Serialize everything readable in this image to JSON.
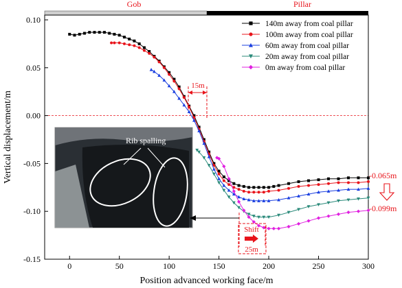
{
  "chart_data": {
    "type": "line",
    "xlabel": "Position advanced working face/m",
    "ylabel": "Vertical displacement/m",
    "xlim": [
      -25,
      300
    ],
    "ylim": [
      -0.15,
      0.105
    ],
    "xticks": [
      0,
      50,
      100,
      150,
      200,
      250,
      300
    ],
    "yticks": [
      0.1,
      0.05,
      0.0,
      -0.05,
      -0.1,
      -0.15
    ],
    "ytick_labels": [
      "0.10",
      "0.05",
      "0.00",
      "-0.05",
      "-0.10",
      "-0.15"
    ],
    "grid": false,
    "legend_position": "top-right",
    "zero_line": true,
    "zones": {
      "gob": {
        "label": "Gob",
        "from": -25,
        "to": 142
      },
      "pillar": {
        "label": "Pillar",
        "from": 142,
        "to": 300
      }
    },
    "series": [
      {
        "name": "140m away from coal pillar",
        "color": "#000000",
        "marker": "square",
        "points": [
          [
            0,
            0.085
          ],
          [
            5,
            0.084
          ],
          [
            10,
            0.085
          ],
          [
            15,
            0.086
          ],
          [
            20,
            0.087
          ],
          [
            25,
            0.087
          ],
          [
            30,
            0.087
          ],
          [
            35,
            0.087
          ],
          [
            40,
            0.086
          ],
          [
            45,
            0.085
          ],
          [
            50,
            0.084
          ],
          [
            55,
            0.082
          ],
          [
            60,
            0.08
          ],
          [
            65,
            0.078
          ],
          [
            70,
            0.075
          ],
          [
            75,
            0.071
          ],
          [
            80,
            0.067
          ],
          [
            85,
            0.062
          ],
          [
            90,
            0.057
          ],
          [
            95,
            0.051
          ],
          [
            100,
            0.045
          ],
          [
            105,
            0.038
          ],
          [
            110,
            0.03
          ],
          [
            115,
            0.02
          ],
          [
            120,
            0.01
          ],
          [
            125,
            0.0
          ],
          [
            130,
            -0.012
          ],
          [
            135,
            -0.025
          ],
          [
            140,
            -0.038
          ],
          [
            145,
            -0.05
          ],
          [
            150,
            -0.058
          ],
          [
            155,
            -0.064
          ],
          [
            160,
            -0.068
          ],
          [
            165,
            -0.071
          ],
          [
            170,
            -0.073
          ],
          [
            175,
            -0.074
          ],
          [
            180,
            -0.075
          ],
          [
            185,
            -0.075
          ],
          [
            190,
            -0.075
          ],
          [
            195,
            -0.075
          ],
          [
            200,
            -0.075
          ],
          [
            205,
            -0.074
          ],
          [
            210,
            -0.073
          ],
          [
            220,
            -0.071
          ],
          [
            230,
            -0.069
          ],
          [
            240,
            -0.068
          ],
          [
            250,
            -0.067
          ],
          [
            260,
            -0.066
          ],
          [
            270,
            -0.066
          ],
          [
            280,
            -0.065
          ],
          [
            290,
            -0.065
          ],
          [
            300,
            -0.065
          ]
        ]
      },
      {
        "name": "100m away from coal pillar",
        "color": "#e8141b",
        "marker": "circle",
        "points": [
          [
            42,
            0.076
          ],
          [
            45,
            0.076
          ],
          [
            50,
            0.076
          ],
          [
            55,
            0.075
          ],
          [
            60,
            0.074
          ],
          [
            65,
            0.073
          ],
          [
            70,
            0.071
          ],
          [
            75,
            0.068
          ],
          [
            80,
            0.065
          ],
          [
            85,
            0.061
          ],
          [
            90,
            0.056
          ],
          [
            95,
            0.05
          ],
          [
            100,
            0.043
          ],
          [
            105,
            0.036
          ],
          [
            110,
            0.028
          ],
          [
            115,
            0.019
          ],
          [
            120,
            0.009
          ],
          [
            125,
            -0.002
          ],
          [
            130,
            -0.014
          ],
          [
            135,
            -0.027
          ],
          [
            140,
            -0.04
          ],
          [
            145,
            -0.052
          ],
          [
            150,
            -0.061
          ],
          [
            155,
            -0.068
          ],
          [
            160,
            -0.072
          ],
          [
            165,
            -0.075
          ],
          [
            170,
            -0.077
          ],
          [
            175,
            -0.079
          ],
          [
            180,
            -0.08
          ],
          [
            185,
            -0.08
          ],
          [
            190,
            -0.08
          ],
          [
            195,
            -0.08
          ],
          [
            200,
            -0.079
          ],
          [
            210,
            -0.078
          ],
          [
            220,
            -0.076
          ],
          [
            230,
            -0.074
          ],
          [
            240,
            -0.073
          ],
          [
            250,
            -0.072
          ],
          [
            260,
            -0.071
          ],
          [
            270,
            -0.07
          ],
          [
            280,
            -0.07
          ],
          [
            290,
            -0.07
          ],
          [
            300,
            -0.069
          ]
        ]
      },
      {
        "name": "60m away from coal pillar",
        "color": "#1a3fe0",
        "marker": "triangle-up",
        "points": [
          [
            82,
            0.048
          ],
          [
            85,
            0.046
          ],
          [
            90,
            0.042
          ],
          [
            95,
            0.037
          ],
          [
            100,
            0.031
          ],
          [
            105,
            0.025
          ],
          [
            110,
            0.018
          ],
          [
            115,
            0.011
          ],
          [
            120,
            0.004
          ],
          [
            125,
            -0.005
          ],
          [
            130,
            -0.016
          ],
          [
            135,
            -0.029
          ],
          [
            140,
            -0.043
          ],
          [
            145,
            -0.056
          ],
          [
            150,
            -0.066
          ],
          [
            155,
            -0.073
          ],
          [
            160,
            -0.078
          ],
          [
            165,
            -0.082
          ],
          [
            170,
            -0.085
          ],
          [
            175,
            -0.087
          ],
          [
            180,
            -0.088
          ],
          [
            185,
            -0.089
          ],
          [
            190,
            -0.089
          ],
          [
            195,
            -0.089
          ],
          [
            200,
            -0.089
          ],
          [
            210,
            -0.088
          ],
          [
            220,
            -0.086
          ],
          [
            230,
            -0.084
          ],
          [
            240,
            -0.082
          ],
          [
            250,
            -0.08
          ],
          [
            260,
            -0.079
          ],
          [
            270,
            -0.078
          ],
          [
            280,
            -0.077
          ],
          [
            290,
            -0.077
          ],
          [
            300,
            -0.076
          ]
        ]
      },
      {
        "name": "20m away from coal pillar",
        "color": "#2a8a7a",
        "marker": "triangle-down",
        "points": [
          [
            128,
            -0.036
          ],
          [
            130,
            -0.038
          ],
          [
            135,
            -0.044
          ],
          [
            140,
            -0.052
          ],
          [
            145,
            -0.061
          ],
          [
            150,
            -0.07
          ],
          [
            155,
            -0.078
          ],
          [
            160,
            -0.085
          ],
          [
            165,
            -0.091
          ],
          [
            170,
            -0.096
          ],
          [
            175,
            -0.1
          ],
          [
            180,
            -0.103
          ],
          [
            185,
            -0.105
          ],
          [
            190,
            -0.106
          ],
          [
            195,
            -0.106
          ],
          [
            200,
            -0.106
          ],
          [
            210,
            -0.104
          ],
          [
            220,
            -0.101
          ],
          [
            230,
            -0.098
          ],
          [
            240,
            -0.095
          ],
          [
            250,
            -0.093
          ],
          [
            260,
            -0.091
          ],
          [
            270,
            -0.089
          ],
          [
            280,
            -0.088
          ],
          [
            290,
            -0.087
          ],
          [
            300,
            -0.086
          ]
        ]
      },
      {
        "name": "0m away from coal pillar",
        "color": "#e020e0",
        "marker": "diamond",
        "points": [
          [
            148,
            -0.044
          ],
          [
            150,
            -0.045
          ],
          [
            155,
            -0.053
          ],
          [
            160,
            -0.066
          ],
          [
            165,
            -0.079
          ],
          [
            170,
            -0.09
          ],
          [
            175,
            -0.099
          ],
          [
            180,
            -0.106
          ],
          [
            185,
            -0.111
          ],
          [
            190,
            -0.115
          ],
          [
            195,
            -0.117
          ],
          [
            200,
            -0.118
          ],
          [
            205,
            -0.118
          ],
          [
            210,
            -0.118
          ],
          [
            220,
            -0.116
          ],
          [
            230,
            -0.113
          ],
          [
            240,
            -0.11
          ],
          [
            250,
            -0.107
          ],
          [
            260,
            -0.105
          ],
          [
            270,
            -0.103
          ],
          [
            280,
            -0.101
          ],
          [
            290,
            -0.1
          ],
          [
            300,
            -0.099
          ]
        ]
      }
    ],
    "annotations": {
      "shift_15m": "15m",
      "shift_25m_line1": "Shift",
      "shift_25m_line2": "25m",
      "end_top": "-0.065m",
      "end_bottom": "-0.099m",
      "photo_label": "Rib spalling"
    }
  },
  "colors": {
    "axis": "#000000",
    "annotation_red": "#e8141b",
    "zero_line": "#e8141b",
    "photo_bg": "#2a2f34"
  }
}
